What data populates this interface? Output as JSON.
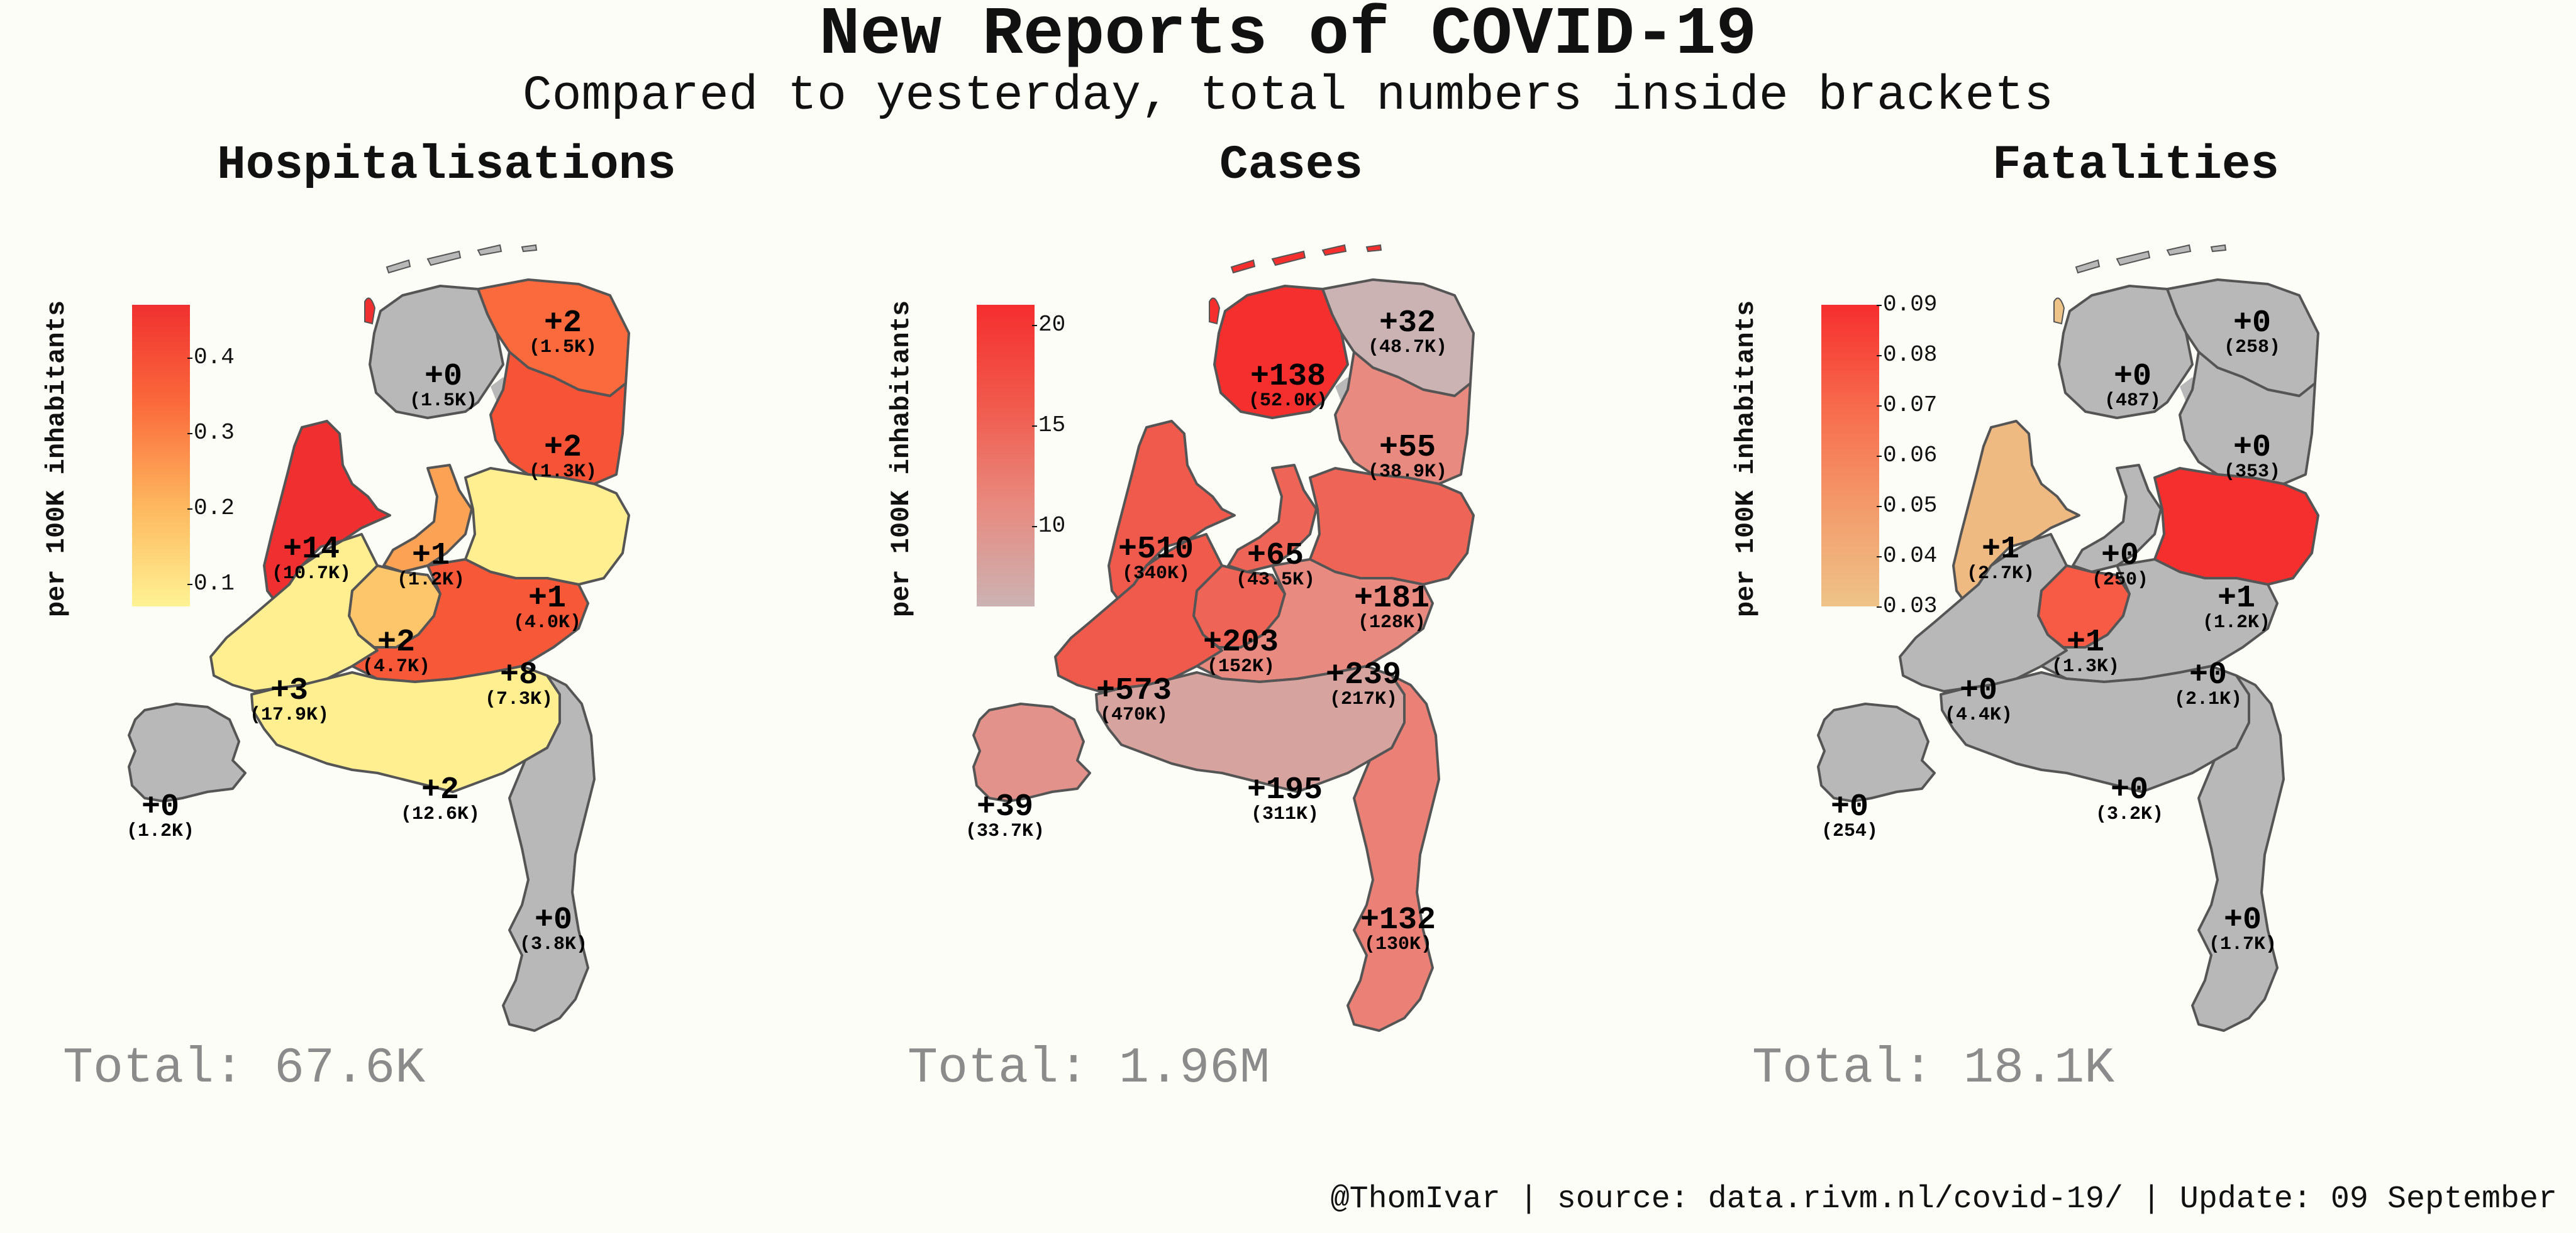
{
  "title": "New Reports of COVID-19",
  "subtitle": "Compared to yesterday, total numbers inside brackets",
  "footer": "@ThomIvar | source: data.rivm.nl/covid-19/ | Update: 09 September",
  "colors": {
    "background": "#fdfdf7",
    "no_change": "#b8b8b8",
    "border": "#555555",
    "total_text": "#8b8b8b"
  },
  "chart_data": [
    {
      "type": "choropleth",
      "title": "Hospitalisations",
      "legend": {
        "label": "per 100K inhabitants",
        "ticks": [
          "0.4",
          "0.3",
          "0.2",
          "0.1"
        ],
        "tick_values": [
          0.4,
          0.3,
          0.2,
          0.1
        ],
        "range": [
          0.07,
          0.47
        ],
        "colors": [
          "#fff394",
          "#fdb75e",
          "#fa6b3c",
          "#f03030"
        ]
      },
      "total": "Total: 67.6K",
      "regions": [
        {
          "province": "Groningen",
          "delta": "+2",
          "total": "(1.5K)",
          "value": 0.34
        },
        {
          "province": "Friesland",
          "delta": "+0",
          "total": "(1.5K)",
          "value": 0
        },
        {
          "province": "Drenthe",
          "delta": "+2",
          "total": "(1.3K)",
          "value": 0.39
        },
        {
          "province": "Noord-Holland",
          "delta": "+14",
          "total": "(10.7K)",
          "value": 0.48
        },
        {
          "province": "Flevoland",
          "delta": "+1",
          "total": "(1.2K)",
          "value": 0.24
        },
        {
          "province": "Overijssel",
          "delta": "+1",
          "total": "(4.0K)",
          "value": 0.08
        },
        {
          "province": "Utrecht",
          "delta": "+2",
          "total": "(4.7K)",
          "value": 0.17
        },
        {
          "province": "Gelderland",
          "delta": "+8",
          "total": "(7.3K)",
          "value": 0.38
        },
        {
          "province": "Zuid-Holland",
          "delta": "+3",
          "total": "(17.9K)",
          "value": 0.08
        },
        {
          "province": "Noord-Brabant",
          "delta": "+2",
          "total": "(12.6K)",
          "value": 0.08
        },
        {
          "province": "Zeeland",
          "delta": "+0",
          "total": "(1.2K)",
          "value": 0
        },
        {
          "province": "Limburg",
          "delta": "+0",
          "total": "(3.8K)",
          "value": 0
        }
      ]
    },
    {
      "type": "choropleth",
      "title": "Cases",
      "legend": {
        "label": "per 100K inhabitants",
        "ticks": [
          "20",
          "15",
          "10"
        ],
        "tick_values": [
          20,
          15,
          10
        ],
        "range": [
          6,
          21
        ],
        "colors": [
          "#cbb3b3",
          "#e88a80",
          "#f05a4c",
          "#f52e2e"
        ]
      },
      "total": "Total: 1.96M",
      "regions": [
        {
          "province": "Groningen",
          "delta": "+32",
          "total": "(48.7K)",
          "value": 6
        },
        {
          "province": "Friesland",
          "delta": "+138",
          "total": "(52.0K)",
          "value": 21
        },
        {
          "province": "Drenthe",
          "delta": "+55",
          "total": "(38.9K)",
          "value": 11
        },
        {
          "province": "Noord-Holland",
          "delta": "+510",
          "total": "(340K)",
          "value": 16
        },
        {
          "province": "Flevoland",
          "delta": "+65",
          "total": "(43.5K)",
          "value": 15
        },
        {
          "province": "Overijssel",
          "delta": "+181",
          "total": "(128K)",
          "value": 15
        },
        {
          "province": "Utrecht",
          "delta": "+203",
          "total": "(152K)",
          "value": 15
        },
        {
          "province": "Gelderland",
          "delta": "+239",
          "total": "(217K)",
          "value": 11
        },
        {
          "province": "Zuid-Holland",
          "delta": "+573",
          "total": "(470K)",
          "value": 16
        },
        {
          "province": "Noord-Brabant",
          "delta": "+195",
          "total": "(311K)",
          "value": 8
        },
        {
          "province": "Zeeland",
          "delta": "+39",
          "total": "(33.7K)",
          "value": 10
        },
        {
          "province": "Limburg",
          "delta": "+132",
          "total": "(130K)",
          "value": 12
        }
      ]
    },
    {
      "type": "choropleth",
      "title": "Fatalities",
      "legend": {
        "label": "per 100K inhabitants",
        "ticks": [
          "0.09",
          "0.08",
          "0.07",
          "0.06",
          "0.05",
          "0.04",
          "0.03"
        ],
        "tick_values": [
          0.09,
          0.08,
          0.07,
          0.06,
          0.05,
          0.04,
          0.03
        ],
        "range": [
          0.03,
          0.09
        ],
        "colors": [
          "#eec489",
          "#f39a6a",
          "#f76a4c",
          "#f52e2e"
        ]
      },
      "total": "Total: 18.1K",
      "regions": [
        {
          "province": "Groningen",
          "delta": "+0",
          "total": "(258)",
          "value": 0
        },
        {
          "province": "Friesland",
          "delta": "+0",
          "total": "(487)",
          "value": 0
        },
        {
          "province": "Drenthe",
          "delta": "+0",
          "total": "(353)",
          "value": 0
        },
        {
          "province": "Noord-Holland",
          "delta": "+1",
          "total": "(2.7K)",
          "value": 0.035
        },
        {
          "province": "Flevoland",
          "delta": "+0",
          "total": "(250)",
          "value": 0
        },
        {
          "province": "Overijssel",
          "delta": "+1",
          "total": "(1.2K)",
          "value": 0.09
        },
        {
          "province": "Utrecht",
          "delta": "+1",
          "total": "(1.3K)",
          "value": 0.075
        },
        {
          "province": "Gelderland",
          "delta": "+0",
          "total": "(2.1K)",
          "value": 0
        },
        {
          "province": "Zuid-Holland",
          "delta": "+0",
          "total": "(4.4K)",
          "value": 0
        },
        {
          "province": "Noord-Brabant",
          "delta": "+0",
          "total": "(3.2K)",
          "value": 0
        },
        {
          "province": "Zeeland",
          "delta": "+0",
          "total": "(254)",
          "value": 0
        },
        {
          "province": "Limburg",
          "delta": "+0",
          "total": "(1.7K)",
          "value": 0
        }
      ]
    }
  ]
}
